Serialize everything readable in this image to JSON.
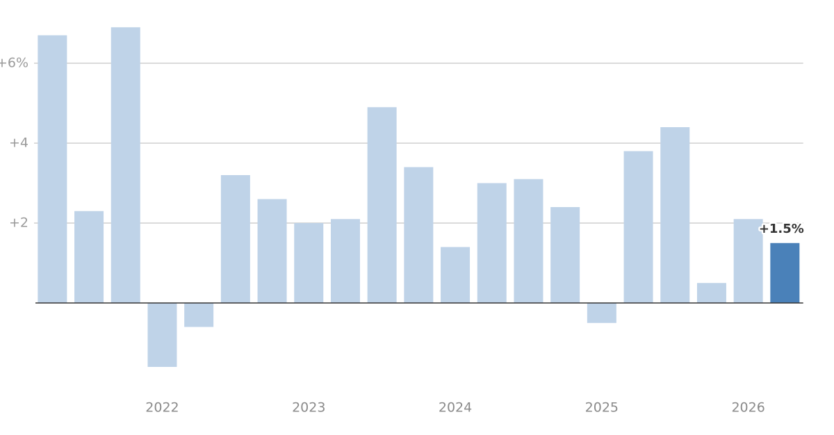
{
  "chart_data": {
    "type": "bar",
    "categories": [
      null,
      null,
      null,
      "2022",
      null,
      null,
      null,
      "2023",
      null,
      null,
      null,
      "2024",
      null,
      null,
      null,
      "2025",
      null,
      null,
      null,
      "2026",
      null
    ],
    "values": [
      6.7,
      2.3,
      6.9,
      -1.6,
      -0.6,
      3.2,
      2.6,
      2.0,
      2.1,
      4.9,
      3.4,
      1.4,
      3.0,
      3.1,
      2.4,
      -0.5,
      3.8,
      4.4,
      0.5,
      2.1,
      1.5
    ],
    "value_labels": [
      null,
      null,
      null,
      null,
      null,
      null,
      null,
      null,
      null,
      null,
      null,
      null,
      null,
      null,
      null,
      null,
      null,
      null,
      null,
      null,
      "+1.5%"
    ],
    "colors": [
      "#bfd3e8",
      "#bfd3e8",
      "#bfd3e8",
      "#bfd3e8",
      "#bfd3e8",
      "#bfd3e8",
      "#bfd3e8",
      "#bfd3e8",
      "#bfd3e8",
      "#bfd3e8",
      "#bfd3e8",
      "#bfd3e8",
      "#bfd3e8",
      "#bfd3e8",
      "#bfd3e8",
      "#bfd3e8",
      "#bfd3e8",
      "#bfd3e8",
      "#bfd3e8",
      "#bfd3e8",
      "#4a81b9"
    ],
    "ylim": [
      -2,
      7
    ],
    "yticks": [
      {
        "value": 2,
        "label": "+2"
      },
      {
        "value": 4,
        "label": "+4"
      },
      {
        "value": 6,
        "label": "+6%"
      }
    ],
    "grid": true
  }
}
